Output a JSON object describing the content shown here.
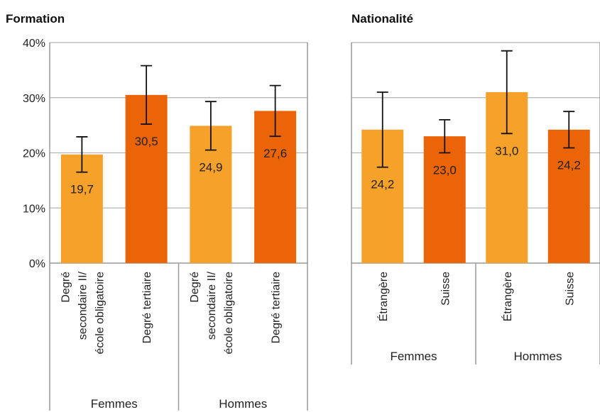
{
  "chart_data": [
    {
      "type": "bar",
      "title": "Formation",
      "ylim": [
        0,
        40
      ],
      "yticks": [
        "0%",
        "10%",
        "20%",
        "30%",
        "40%"
      ],
      "grid": true,
      "groups": [
        "Femmes",
        "Hommes"
      ],
      "categories": [
        [
          "Degré",
          "secondaire II/",
          "école obligatoire"
        ],
        [
          "Degré tertiaire"
        ],
        [
          "Degré",
          "secondaire II/",
          "école obligatoire"
        ],
        [
          "Degré tertiaire"
        ]
      ],
      "values": [
        19.7,
        30.5,
        24.9,
        27.6
      ],
      "value_labels": [
        "19,7",
        "30,5",
        "24,9",
        "27,6"
      ],
      "error_low": [
        16.5,
        25.2,
        20.5,
        23.0
      ],
      "error_high": [
        22.9,
        35.8,
        29.3,
        32.2
      ],
      "colors": [
        "#F5A12A",
        "#EB6407",
        "#F5A12A",
        "#EB6407"
      ]
    },
    {
      "type": "bar",
      "title": "Nationalité",
      "ylim": [
        0,
        40
      ],
      "grid": true,
      "groups": [
        "Femmes",
        "Hommes"
      ],
      "categories": [
        [
          "Étrangère"
        ],
        [
          "Suisse"
        ],
        [
          "Étrangère"
        ],
        [
          "Suisse"
        ]
      ],
      "values": [
        24.2,
        23.0,
        31.0,
        24.2
      ],
      "value_labels": [
        "24,2",
        "23,0",
        "31,0",
        "24,2"
      ],
      "error_low": [
        17.4,
        20.0,
        23.5,
        20.9
      ],
      "error_high": [
        31.0,
        26.0,
        38.5,
        27.5
      ],
      "colors": [
        "#F5A12A",
        "#EB6407",
        "#F5A12A",
        "#EB6407"
      ]
    }
  ]
}
